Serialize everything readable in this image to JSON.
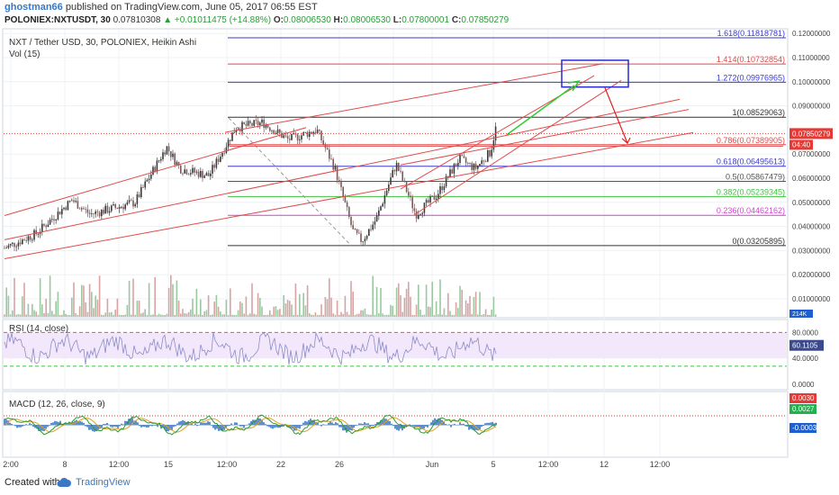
{
  "header": {
    "username": "ghostman66",
    "published": "published on TradingView.com, June 05, 2017 06:55 EST",
    "symbol": "POLONIEX:NXTUSDT, 30",
    "last": "0.07810308",
    "change": "▲ +0.01011475 (+14.88%)",
    "o_label": "O:",
    "o": "0.08006530",
    "h_label": "H:",
    "h": "0.08006530",
    "l_label": "L:",
    "l": "0.07800001",
    "c_label": "C:",
    "c": "0.07850279"
  },
  "main": {
    "title": "NXT / Tether USD, 30, POLONIEX, Heikin Ashi",
    "vol_label": "Vol (15)",
    "price_axis": [
      {
        "value": 0.12,
        "label": "0.12000000"
      },
      {
        "value": 0.11,
        "label": "0.11000000"
      },
      {
        "value": 0.1,
        "label": "0.10000000"
      },
      {
        "value": 0.09,
        "label": "0.09000000"
      },
      {
        "value": 0.07,
        "label": "0.07000000"
      },
      {
        "value": 0.06,
        "label": "0.06000000"
      },
      {
        "value": 0.05,
        "label": "0.05000000"
      },
      {
        "value": 0.04,
        "label": "0.04000000"
      },
      {
        "value": 0.03,
        "label": "0.03000000"
      },
      {
        "value": 0.02,
        "label": "0.02000000"
      },
      {
        "value": 0.01,
        "label": "0.01000000"
      }
    ],
    "price_badge": "0.07850279",
    "time_badge": "04:40",
    "vol_badge": "214K",
    "fib_levels": [
      {
        "ratio": "1.618",
        "value": 0.11818781,
        "label": "1.618(0.11818781)",
        "color": "#3b3bc8"
      },
      {
        "ratio": "1.414",
        "value": 0.10732854,
        "label": "1.414(0.10732854)",
        "color": "#e04a4a"
      },
      {
        "ratio": "1.272",
        "value": 0.09976965,
        "label": "1.272(0.09976965)",
        "color": "#3b3bc8"
      },
      {
        "ratio": "1",
        "value": 0.08529063,
        "label": "1(0.08529063)",
        "color": "#333333"
      },
      {
        "ratio": "0.786",
        "value": 0.07389905,
        "label": "0.786(0.07389905)",
        "color": "#e04a4a"
      },
      {
        "ratio": "0.618",
        "value": 0.06495613,
        "label": "0.618(0.06495613)",
        "color": "#3b3bc8"
      },
      {
        "ratio": "0.5",
        "value": 0.05867479,
        "label": "0.5(0.05867479)",
        "color": "#555555"
      },
      {
        "ratio": "0.382",
        "value": 0.05239345,
        "label": "0.382(0.05239345)",
        "color": "#3ec43e"
      },
      {
        "ratio": "0.236",
        "value": 0.04462162,
        "label": "0.236(0.04462162)",
        "color": "#d63fd6"
      },
      {
        "ratio": "0",
        "value": 0.03205895,
        "label": "0(0.03205895)",
        "color": "#333333"
      }
    ]
  },
  "rsi": {
    "label": "RSI (14, close)",
    "axis": [
      {
        "value": 80,
        "label": "80.0000"
      },
      {
        "value": 40,
        "label": "40.0000"
      },
      {
        "value": 0,
        "label": "0.0000"
      }
    ],
    "badge": "60.1105",
    "value": 60.1105
  },
  "macd": {
    "label": "MACD (12, 26, close, 9)",
    "badges": [
      "0.0030",
      "0.0027",
      "-0.0003"
    ]
  },
  "time_axis": [
    "2:00",
    "8",
    "12:00",
    "15",
    "12:00",
    "22",
    "26",
    "Jun",
    "5",
    "12:00",
    "12",
    "12:00"
  ],
  "footer": {
    "created_with": "Created with",
    "brand": "TradingView"
  },
  "colors": {
    "up": "#2a9d3a",
    "channel": "#e04a4a",
    "price_line": "#3a3a3a",
    "rsi_line": "#8c8cc8",
    "rsi_band": "#f3e8fb",
    "macd_line": "#2b6fd3",
    "signal_line": "#e0a020",
    "hist": "#1a5fb4",
    "badge_red": "#e53935",
    "badge_green": "#22b14c",
    "badge_blue": "#1e5fd0",
    "tv_blue": "#3a78c3"
  }
}
